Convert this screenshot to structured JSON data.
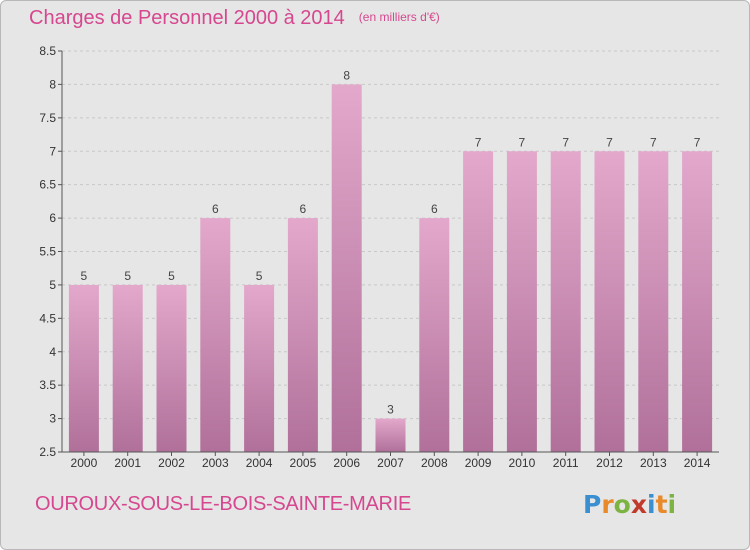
{
  "header": {
    "title": "Charges de Personnel 2000 à 2014",
    "subtitle": "(en milliers d'€)"
  },
  "footer": {
    "place": "OUROUX-SOUS-LE-BOIS-SAINTE-MARIE",
    "logo": "Proxiti"
  },
  "colors": {
    "accent": "#d6478f",
    "bar_top": "#e3a8cb",
    "bar_bottom": "#b0709a",
    "logo_letters": [
      "#3a8fd0",
      "#e8892a",
      "#7cb342",
      "#c0392b",
      "#3a8fd0",
      "#e8892a",
      "#7cb342"
    ]
  },
  "chart_data": {
    "type": "bar",
    "title": "Charges de Personnel 2000 à 2014",
    "subtitle": "(en milliers d'€)",
    "categories": [
      "2000",
      "2001",
      "2002",
      "2003",
      "2004",
      "2005",
      "2006",
      "2007",
      "2008",
      "2009",
      "2010",
      "2011",
      "2012",
      "2013",
      "2014"
    ],
    "values": [
      5,
      5,
      5,
      6,
      5,
      6,
      8,
      3,
      6,
      7,
      7,
      7,
      7,
      7,
      7
    ],
    "data_labels": [
      "5",
      "5",
      "5",
      "6",
      "5",
      "6",
      "8",
      "3",
      "6",
      "7",
      "7",
      "7",
      "7",
      "7",
      "7"
    ],
    "ylim": [
      2.5,
      8.5
    ],
    "yticks": [
      2.5,
      3,
      3.5,
      4,
      4.5,
      5,
      5.5,
      6,
      6.5,
      7,
      7.5,
      8,
      8.5
    ],
    "ytick_labels": [
      "2.5",
      "3",
      "3.5",
      "4",
      "4.5",
      "5",
      "5.5",
      "6",
      "6.5",
      "7",
      "7.5",
      "8",
      "8.5"
    ],
    "grid": "horizontal-dashed",
    "xlabel": "",
    "ylabel": ""
  }
}
